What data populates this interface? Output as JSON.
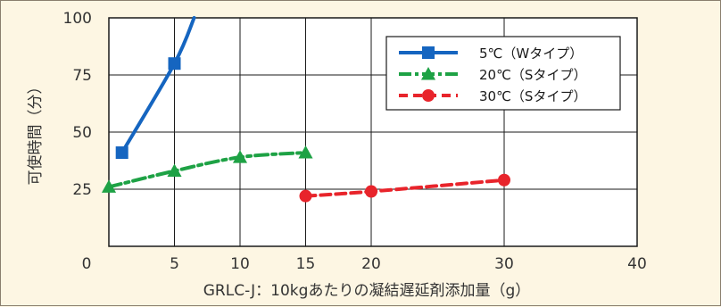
{
  "chart_data": {
    "type": "line",
    "title": "",
    "xlabel": "GRLC-J：10kgあたりの凝結遅延剤添加量（g）",
    "ylabel": "可使時間（分）",
    "xlim": [
      0,
      40
    ],
    "ylim": [
      0,
      100
    ],
    "x_ticks": [
      0,
      5,
      10,
      15,
      20,
      30,
      40
    ],
    "x_tick_labels": [
      "0",
      "5",
      "10",
      "15",
      "20",
      "30",
      "40"
    ],
    "y_ticks": [
      25,
      50,
      75,
      100
    ],
    "y_tick_labels": [
      "25",
      "50",
      "75",
      "100"
    ],
    "x_axis_layout": "piecewise: 0-20 linear, 20-40 compressed",
    "grid": true,
    "legend_position": "top-right",
    "series": [
      {
        "name": "5℃（Wタイプ）",
        "color": "#1565c0",
        "marker": "square",
        "line_style": "solid",
        "points": [
          [
            1,
            41
          ],
          [
            5,
            80
          ]
        ],
        "curve_extension": [
          [
            5,
            80
          ],
          [
            6.5,
            100
          ]
        ]
      },
      {
        "name": "20℃（Sタイプ）",
        "color": "#1ea245",
        "marker": "triangle",
        "line_style": "dash-dot",
        "points": [
          [
            0,
            26
          ],
          [
            5,
            33
          ],
          [
            10,
            39
          ],
          [
            15,
            41
          ]
        ]
      },
      {
        "name": "30℃（Sタイプ）",
        "color": "#e8242b",
        "marker": "circle",
        "line_style": "dashed",
        "points": [
          [
            15,
            22
          ],
          [
            20,
            24
          ],
          [
            30,
            29
          ]
        ]
      }
    ]
  }
}
